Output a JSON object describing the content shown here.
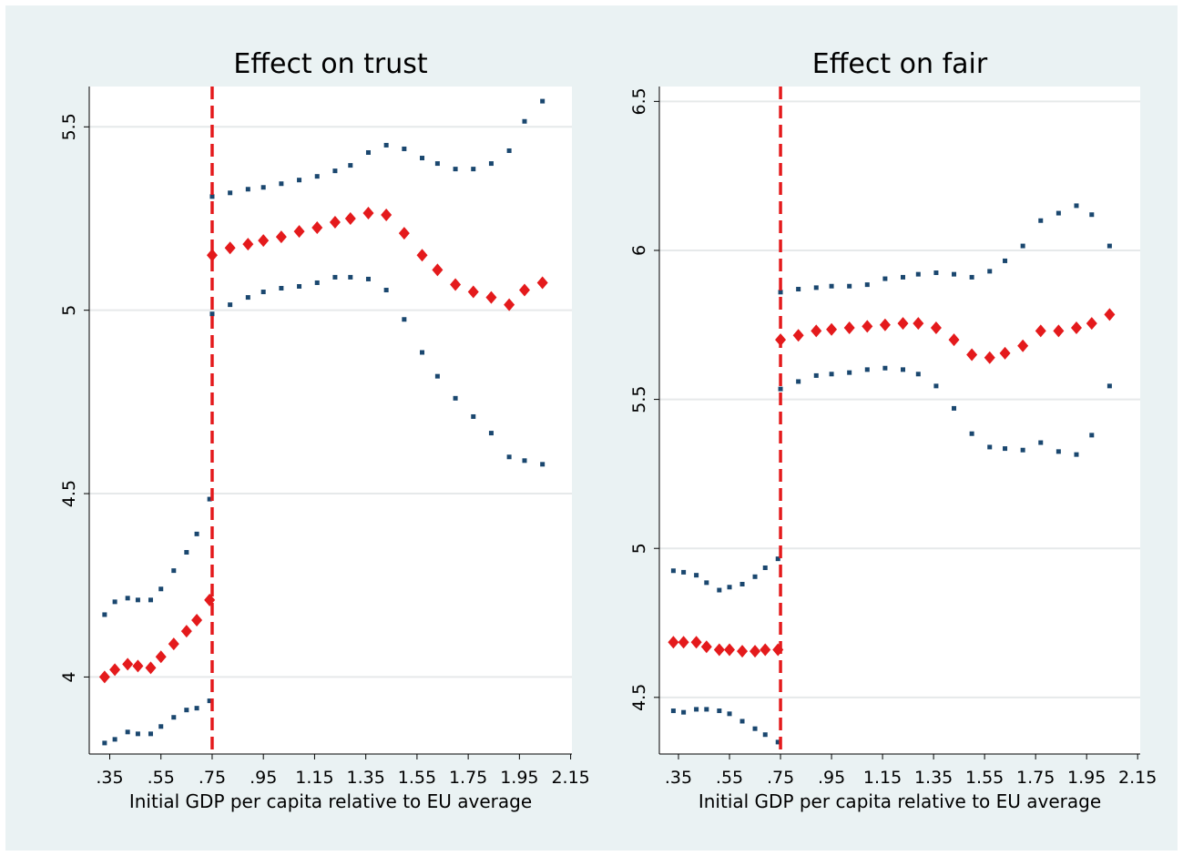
{
  "chart_data": [
    {
      "type": "scatter",
      "title": "Effect on trust",
      "x_label": "Initial GDP per capita relative to EU average",
      "x": [
        0.33,
        0.37,
        0.42,
        0.46,
        0.51,
        0.55,
        0.6,
        0.65,
        0.69,
        0.74,
        0.75,
        0.82,
        0.89,
        0.95,
        1.02,
        1.09,
        1.16,
        1.23,
        1.29,
        1.36,
        1.43,
        1.5,
        1.57,
        1.63,
        1.7,
        1.77,
        1.84,
        1.91,
        1.97,
        2.04
      ],
      "xlim": [
        0.27,
        2.155
      ],
      "xticks": [
        {
          "value": 0.35,
          "label": ".35"
        },
        {
          "value": 0.55,
          "label": ".55"
        },
        {
          "value": 0.75,
          "label": ".75"
        },
        {
          "value": 0.95,
          "label": ".95"
        },
        1.15,
        1.35,
        1.55,
        1.75,
        1.95,
        2.15
      ],
      "ylim": [
        3.79,
        5.61
      ],
      "yticks": [
        4,
        4.5,
        5,
        5.5
      ],
      "grid": true,
      "vline": 0.75,
      "vline_color": "#e41a1c",
      "series": [
        {
          "color": "#1a476f",
          "marker": "square",
          "values": [
            4.17,
            4.205,
            4.215,
            4.21,
            4.21,
            4.24,
            4.29,
            4.34,
            4.39,
            4.485,
            5.31,
            5.32,
            5.33,
            5.335,
            5.345,
            5.355,
            5.365,
            5.38,
            5.395,
            5.43,
            5.45,
            5.44,
            5.415,
            5.4,
            5.385,
            5.385,
            5.4,
            5.435,
            5.515,
            5.57
          ]
        },
        {
          "color": "#e41a1c",
          "marker": "diamond",
          "values": [
            4.0,
            4.02,
            4.035,
            4.03,
            4.025,
            4.055,
            4.09,
            4.125,
            4.155,
            4.21,
            5.15,
            5.17,
            5.18,
            5.19,
            5.2,
            5.215,
            5.225,
            5.24,
            5.25,
            5.265,
            5.26,
            5.21,
            5.15,
            5.11,
            5.07,
            5.05,
            5.035,
            5.015,
            5.055,
            5.075
          ]
        },
        {
          "color": "#1a476f",
          "marker": "square",
          "values": [
            3.82,
            3.83,
            3.85,
            3.845,
            3.845,
            3.865,
            3.89,
            3.91,
            3.915,
            3.935,
            4.99,
            5.015,
            5.035,
            5.05,
            5.06,
            5.065,
            5.075,
            5.09,
            5.09,
            5.085,
            5.055,
            4.975,
            4.885,
            4.82,
            4.76,
            4.71,
            4.665,
            4.6,
            4.59,
            4.58
          ]
        }
      ]
    },
    {
      "type": "scatter",
      "title": "Effect on fair",
      "x_label": "Initial GDP per capita relative to EU average",
      "x": [
        0.33,
        0.37,
        0.42,
        0.46,
        0.51,
        0.55,
        0.6,
        0.65,
        0.69,
        0.74,
        0.75,
        0.82,
        0.89,
        0.95,
        1.02,
        1.09,
        1.16,
        1.23,
        1.29,
        1.36,
        1.43,
        1.5,
        1.57,
        1.63,
        1.7,
        1.77,
        1.84,
        1.91,
        1.97,
        2.04
      ],
      "xlim": [
        0.275,
        2.16
      ],
      "xticks": [
        {
          "value": 0.35,
          "label": ".35"
        },
        {
          "value": 0.55,
          "label": ".55"
        },
        {
          "value": 0.75,
          "label": ".75"
        },
        {
          "value": 0.95,
          "label": ".95"
        },
        1.15,
        1.35,
        1.55,
        1.75,
        1.95,
        2.15
      ],
      "ylim": [
        4.31,
        6.55
      ],
      "yticks": [
        4.5,
        5,
        5.5,
        6,
        6.5
      ],
      "grid": true,
      "vline": 0.75,
      "vline_color": "#e41a1c",
      "series": [
        {
          "color": "#1a476f",
          "marker": "square",
          "values": [
            4.925,
            4.92,
            4.91,
            4.885,
            4.86,
            4.87,
            4.88,
            4.905,
            4.935,
            4.965,
            5.86,
            5.87,
            5.875,
            5.88,
            5.88,
            5.885,
            5.905,
            5.91,
            5.92,
            5.925,
            5.92,
            5.91,
            5.93,
            5.965,
            6.015,
            6.1,
            6.125,
            6.15,
            6.12,
            6.015
          ]
        },
        {
          "color": "#e41a1c",
          "marker": "diamond",
          "values": [
            4.685,
            4.685,
            4.685,
            4.67,
            4.66,
            4.66,
            4.655,
            4.655,
            4.66,
            4.66,
            5.7,
            5.715,
            5.73,
            5.735,
            5.74,
            5.745,
            5.75,
            5.755,
            5.755,
            5.74,
            5.7,
            5.65,
            5.64,
            5.655,
            5.68,
            5.73,
            5.73,
            5.74,
            5.755,
            5.785
          ]
        },
        {
          "color": "#1a476f",
          "marker": "square",
          "values": [
            4.455,
            4.45,
            4.46,
            4.46,
            4.455,
            4.445,
            4.42,
            4.395,
            4.375,
            4.35,
            5.535,
            5.56,
            5.58,
            5.585,
            5.59,
            5.6,
            5.605,
            5.6,
            5.585,
            5.545,
            5.47,
            5.385,
            5.34,
            5.335,
            5.33,
            5.355,
            5.325,
            5.315,
            5.38,
            5.545
          ]
        }
      ]
    }
  ]
}
